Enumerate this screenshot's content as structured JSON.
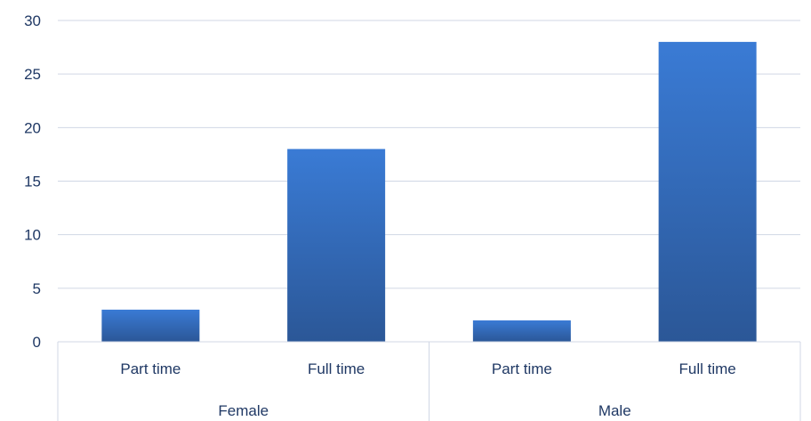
{
  "chart_data": {
    "type": "bar",
    "title": "",
    "xlabel": "",
    "ylabel": "",
    "ylim": [
      0,
      30
    ],
    "yticks": [
      0,
      5,
      10,
      15,
      20,
      25,
      30
    ],
    "grid": true,
    "legend": "none",
    "bar_color": "#3a7bd5",
    "bar_color_dark": "#2b5797",
    "groups": [
      {
        "label": "Female",
        "categories": [
          "Part time",
          "Full time"
        ],
        "values": [
          3,
          18
        ]
      },
      {
        "label": "Male",
        "categories": [
          "Part time",
          "Full time"
        ],
        "values": [
          2,
          28
        ]
      }
    ]
  }
}
